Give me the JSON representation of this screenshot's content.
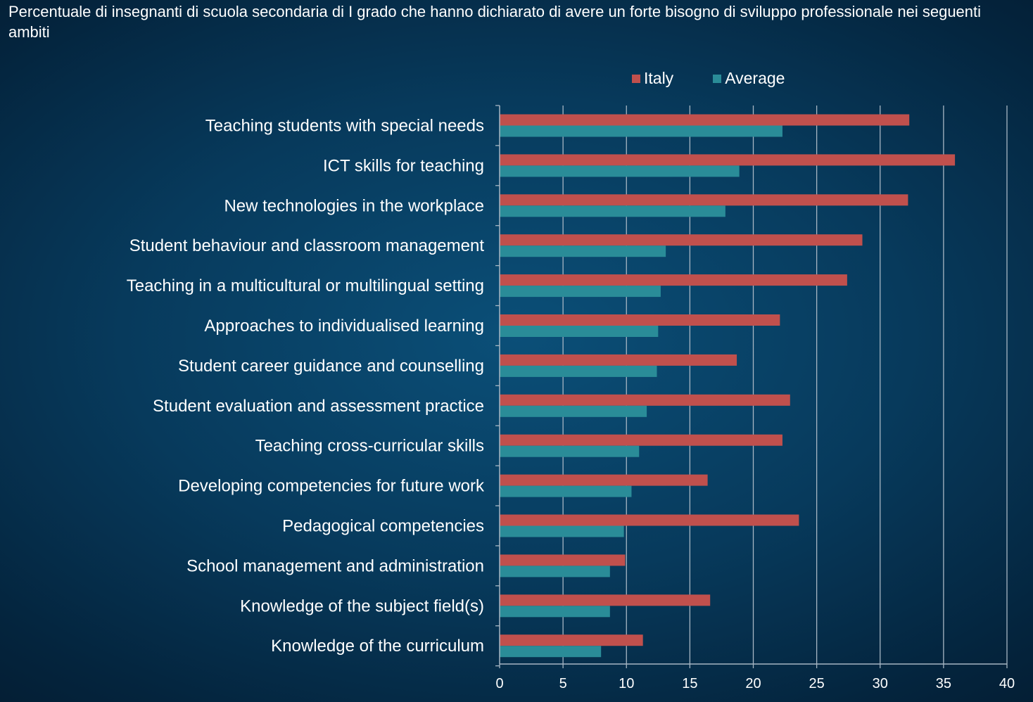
{
  "chart_data": {
    "type": "bar",
    "orientation": "horizontal",
    "title": "Percentuale di insegnanti di scuola secondaria di I grado che hanno dichiarato di avere un forte bisogno di sviluppo professionale nei seguenti ambiti",
    "categories": [
      "Teaching students with special needs",
      "ICT skills for teaching",
      "New technologies in the workplace",
      "Student behaviour and classroom management",
      "Teaching in a multicultural or multilingual setting",
      "Approaches to individualised learning",
      "Student career guidance and counselling",
      "Student evaluation and assessment practice",
      "Teaching cross-curricular skills",
      "Developing competencies for future work",
      "Pedagogical competencies",
      "School management and administration",
      "Knowledge of the subject field(s)",
      "Knowledge of the curriculum"
    ],
    "series": [
      {
        "name": "Italy",
        "color": "#c0504d",
        "values": [
          32.3,
          35.9,
          32.2,
          28.6,
          27.4,
          22.1,
          18.7,
          22.9,
          22.3,
          16.4,
          23.6,
          9.9,
          16.6,
          11.3
        ]
      },
      {
        "name": "Average",
        "color": "#2a8c98",
        "values": [
          22.3,
          18.9,
          17.8,
          13.1,
          12.7,
          12.5,
          12.4,
          11.6,
          11.0,
          10.4,
          9.8,
          8.7,
          8.7,
          8.0
        ]
      }
    ],
    "xlim": [
      0,
      40
    ],
    "xticks": [
      0,
      5,
      10,
      15,
      20,
      25,
      30,
      35,
      40
    ],
    "grid": "vertical",
    "legend": "top-right"
  }
}
